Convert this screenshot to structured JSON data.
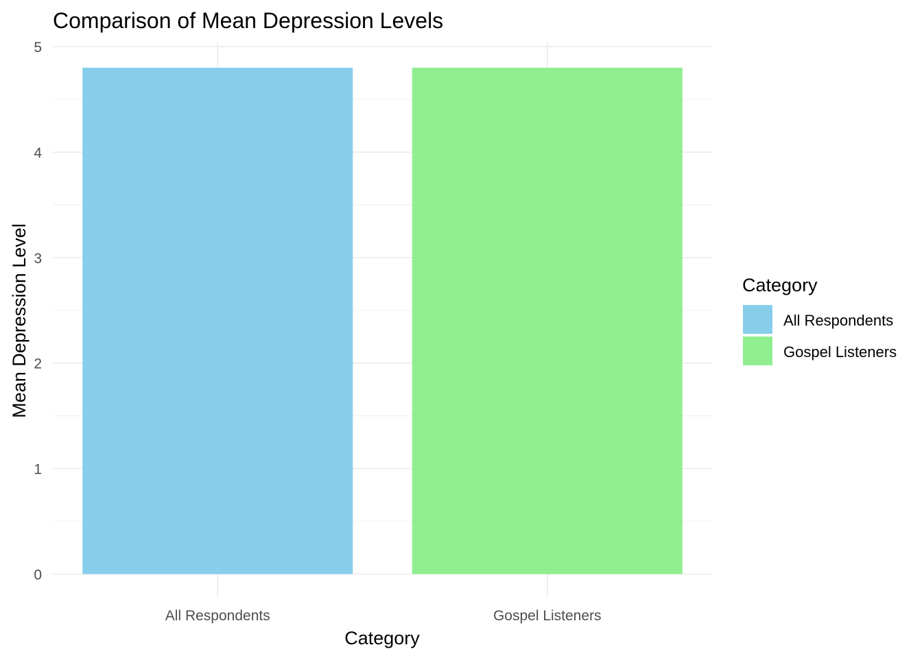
{
  "chart_data": {
    "type": "bar",
    "title": "Comparison of Mean Depression Levels",
    "xlabel": "Category",
    "ylabel": "Mean Depression Level",
    "categories": [
      "All Respondents",
      "Gospel Listeners"
    ],
    "values": [
      4.8,
      4.8
    ],
    "colors": [
      "#87CEEB",
      "#90EE90"
    ],
    "ylim": [
      0,
      5
    ],
    "yticks": [
      0,
      1,
      2,
      3,
      4,
      5
    ],
    "grid": true,
    "legend": {
      "title": "Category",
      "placement": "right",
      "entries": [
        "All Respondents",
        "Gospel Listeners"
      ]
    }
  }
}
